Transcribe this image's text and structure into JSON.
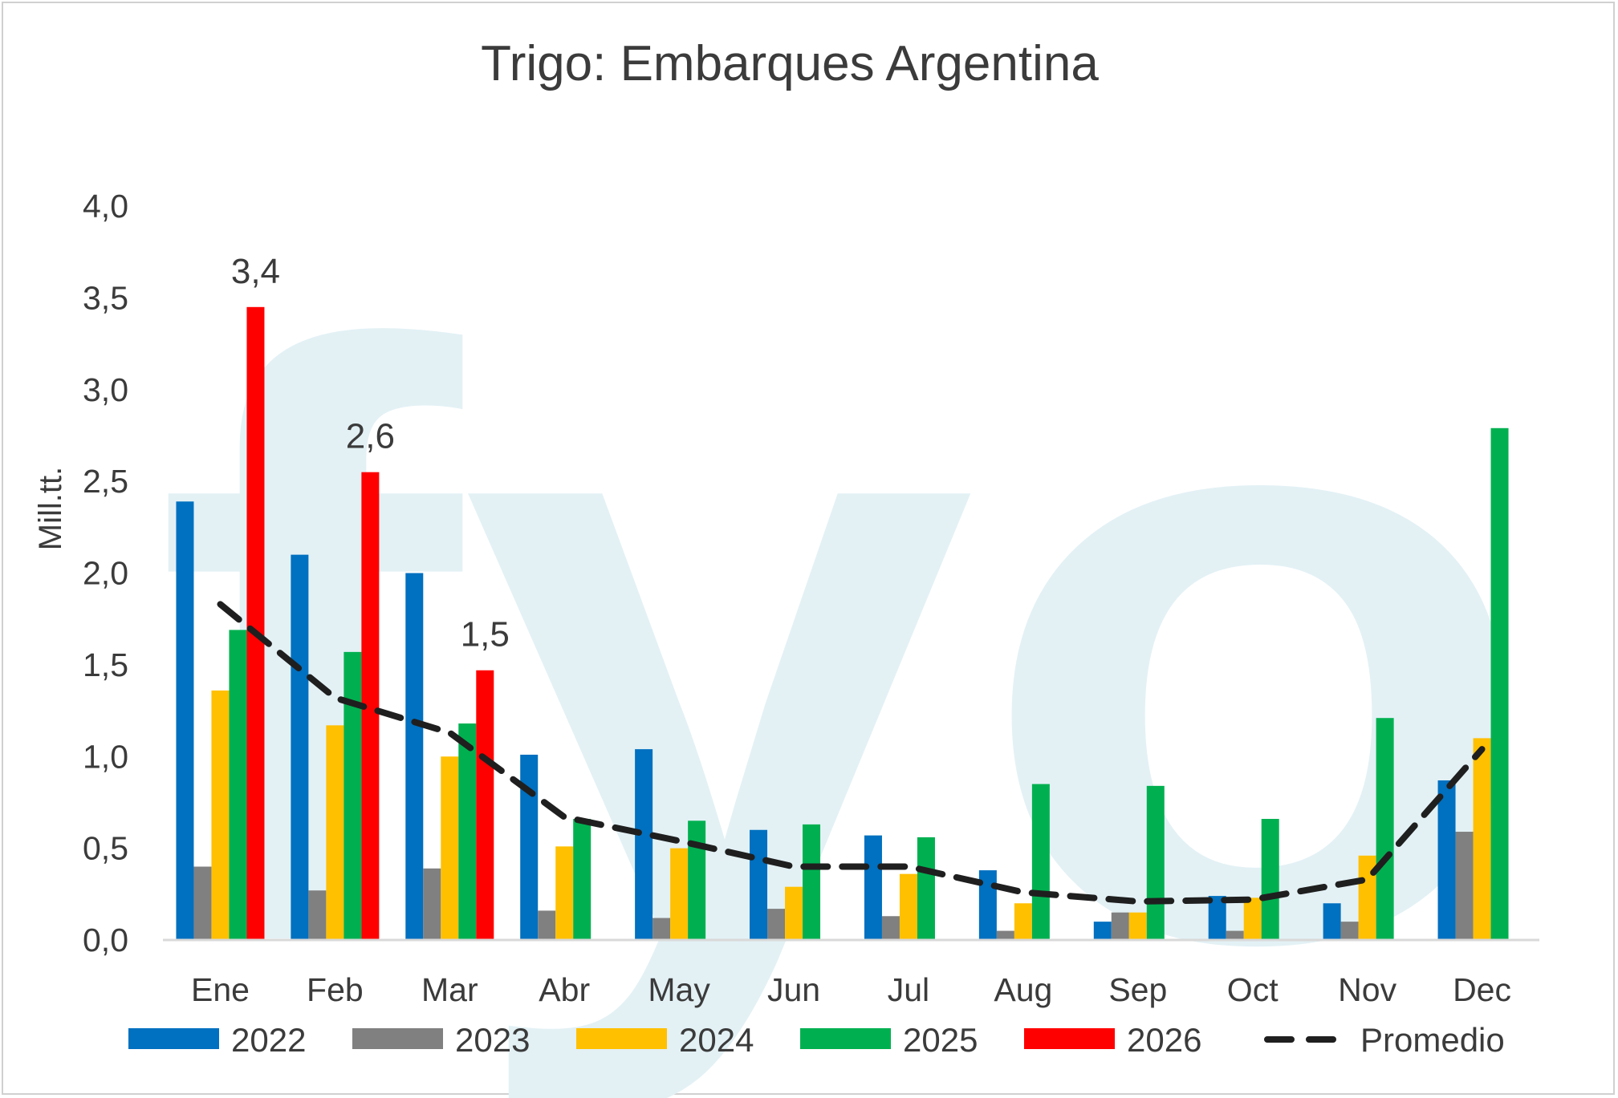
{
  "chart_data": {
    "type": "bar",
    "title": "Trigo: Embarques Argentina",
    "ylabel": "Mill.tt.",
    "xlabel": "",
    "ylim": [
      0,
      4
    ],
    "yticks": [
      0,
      0.5,
      1,
      1.5,
      2,
      2.5,
      3,
      3.5,
      4
    ],
    "ytick_labels": [
      "0,0",
      "0,5",
      "1,0",
      "1,5",
      "2,0",
      "2,5",
      "3,0",
      "3,5",
      "4,0"
    ],
    "categories": [
      "Ene",
      "Feb",
      "Mar",
      "Abr",
      "May",
      "Jun",
      "Jul",
      "Aug",
      "Sep",
      "Oct",
      "Nov",
      "Dec"
    ],
    "series": [
      {
        "name": "2022",
        "color": "#0070c0",
        "values": [
          2.39,
          2.1,
          2.0,
          1.01,
          1.04,
          0.6,
          0.57,
          0.38,
          0.1,
          0.24,
          0.2,
          0.87
        ]
      },
      {
        "name": "2023",
        "color": "#808080",
        "values": [
          0.4,
          0.27,
          0.39,
          0.16,
          0.12,
          0.17,
          0.13,
          0.05,
          0.15,
          0.05,
          0.1,
          0.59
        ]
      },
      {
        "name": "2024",
        "color": "#ffc000",
        "values": [
          1.36,
          1.17,
          1.0,
          0.51,
          0.5,
          0.29,
          0.36,
          0.2,
          0.15,
          0.23,
          0.46,
          1.1
        ]
      },
      {
        "name": "2025",
        "color": "#00b050",
        "values": [
          1.69,
          1.57,
          1.18,
          0.66,
          0.65,
          0.63,
          0.56,
          0.85,
          0.84,
          0.66,
          1.21,
          2.79
        ]
      },
      {
        "name": "2026",
        "color": "#ff0000",
        "values": [
          3.45,
          2.55,
          1.47,
          null,
          null,
          null,
          null,
          null,
          null,
          null,
          null,
          null
        ]
      }
    ],
    "line_series": {
      "name": "Promedio",
      "color": "#1f1f1f",
      "style": "dashed",
      "values": [
        1.83,
        1.32,
        1.13,
        0.67,
        0.54,
        0.4,
        0.4,
        0.26,
        0.21,
        0.22,
        0.33,
        1.04
      ]
    },
    "data_labels": [
      {
        "series": "2026",
        "category": "Ene",
        "text": "3,4"
      },
      {
        "series": "2026",
        "category": "Feb",
        "text": "2,6"
      },
      {
        "series": "2026",
        "category": "Mar",
        "text": "1,5"
      }
    ],
    "legend": {
      "placement": "bottom",
      "items": [
        "2022",
        "2023",
        "2024",
        "2025",
        "2026",
        "Promedio"
      ]
    },
    "grid": false,
    "watermark": "fyo"
  }
}
